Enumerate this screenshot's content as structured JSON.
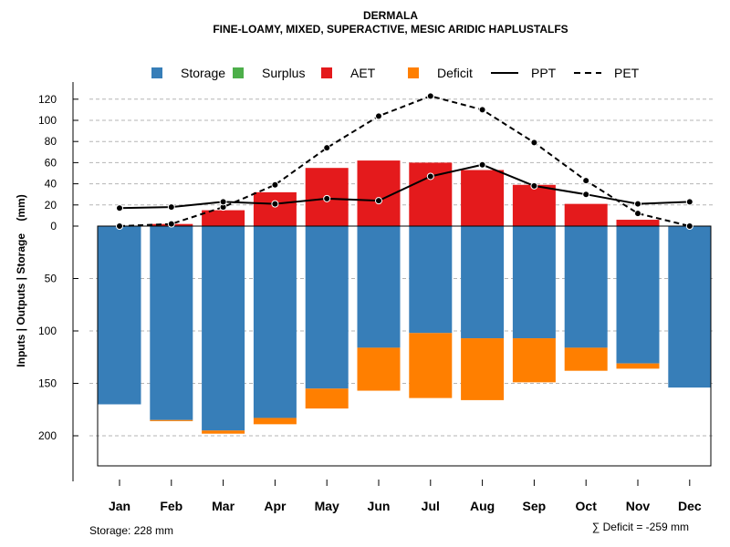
{
  "chart_data": {
    "type": "bar",
    "title": "DERMALA",
    "subtitle": "FINE-LOAMY, MIXED, SUPERACTIVE, MESIC ARIDIC HAPLUSTALFS",
    "ylabel": "Inputs | Outputs | Storage    (mm)",
    "xlabel": "",
    "categories": [
      "Jan",
      "Feb",
      "Mar",
      "Apr",
      "May",
      "Jun",
      "Jul",
      "Aug",
      "Sep",
      "Oct",
      "Nov",
      "Dec"
    ],
    "upper_yticks": [
      0,
      20,
      40,
      60,
      80,
      100,
      120
    ],
    "lower_yticks": [
      50,
      100,
      150,
      200
    ],
    "upper_ylim": [
      0,
      120
    ],
    "lower_ylim": [
      0,
      228
    ],
    "legend": [
      {
        "label": "Storage",
        "kind": "box",
        "color": "#377EB8"
      },
      {
        "label": "Surplus",
        "kind": "box",
        "color": "#4DAF4A"
      },
      {
        "label": "AET",
        "kind": "box",
        "color": "#E41A1C"
      },
      {
        "label": "Deficit",
        "kind": "box",
        "color": "#FF7F00"
      },
      {
        "label": "PPT",
        "kind": "solid",
        "color": "#000000"
      },
      {
        "label": "PET",
        "kind": "dashed",
        "color": "#000000"
      }
    ],
    "series": [
      {
        "name": "AET",
        "color": "#E41A1C",
        "values": [
          0,
          2,
          15,
          32,
          55,
          62,
          60,
          53,
          39,
          21,
          6,
          0
        ]
      },
      {
        "name": "Surplus",
        "color": "#4DAF4A",
        "values": [
          0,
          0,
          0,
          0,
          0,
          0,
          0,
          0,
          0,
          0,
          0,
          0
        ]
      },
      {
        "name": "Storage",
        "color": "#377EB8",
        "values": [
          170,
          185,
          195,
          183,
          155,
          116,
          102,
          107,
          107,
          116,
          131,
          154
        ]
      },
      {
        "name": "Deficit",
        "color": "#FF7F00",
        "values": [
          0,
          1,
          3,
          6,
          19,
          41,
          62,
          59,
          42,
          22,
          5,
          0
        ]
      },
      {
        "name": "PPT",
        "color": "#000000",
        "values": [
          17,
          18,
          23,
          21,
          26,
          24,
          47,
          58,
          38,
          30,
          21,
          23
        ]
      },
      {
        "name": "PET",
        "color": "#000000",
        "values": [
          0,
          2,
          18,
          39,
          74,
          104,
          123,
          110,
          79,
          43,
          12,
          0
        ]
      }
    ],
    "storage_note": "Storage: 228 mm",
    "deficit_note": "∑ Deficit = -259 mm"
  }
}
